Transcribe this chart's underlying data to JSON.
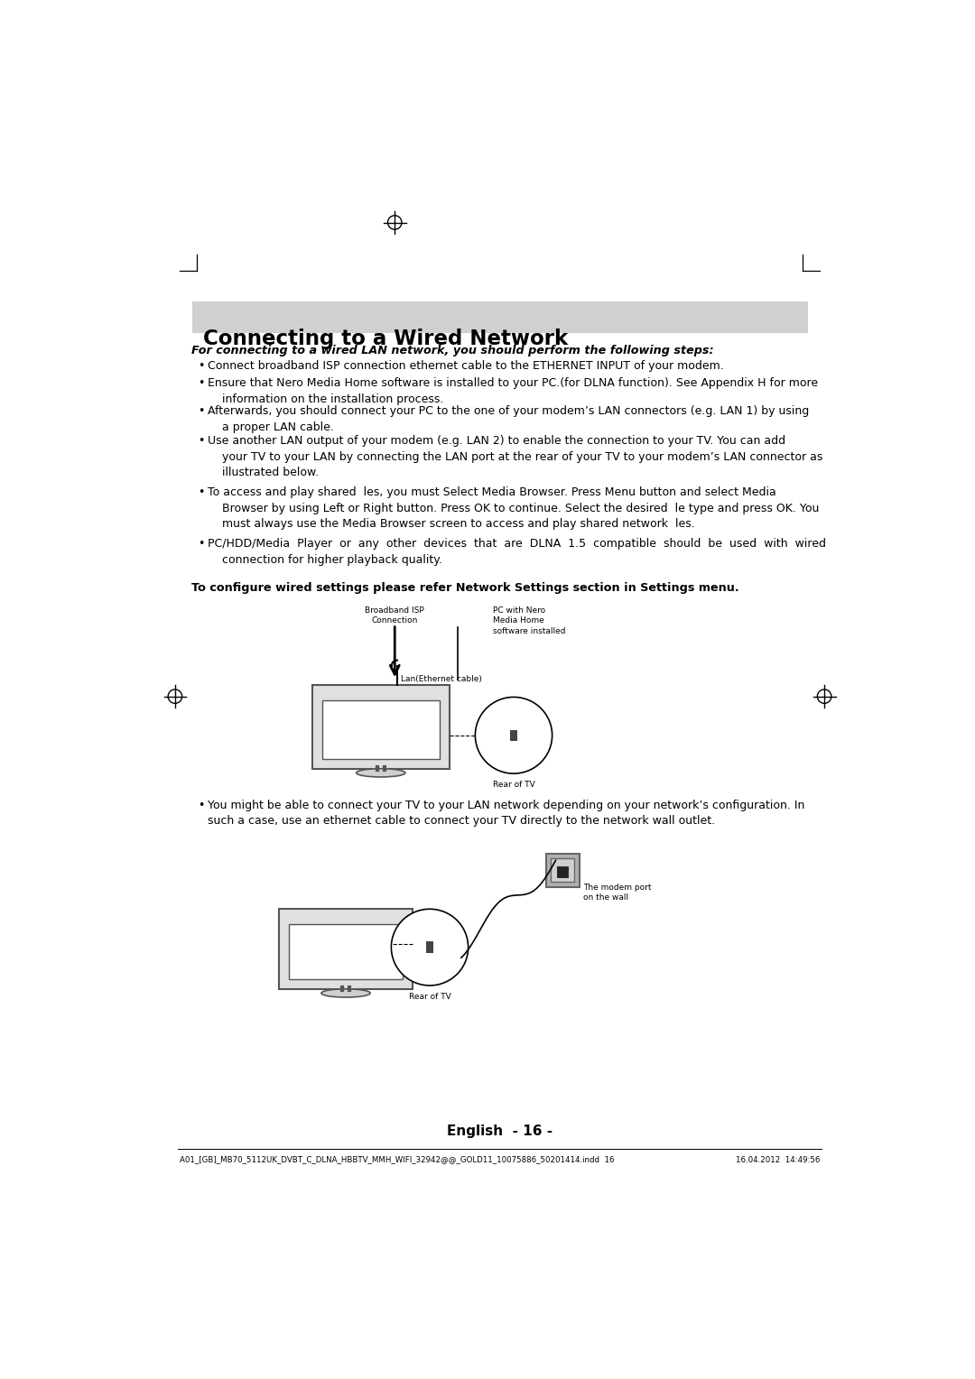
{
  "bg_color": "#ffffff",
  "title": "Connecting to a Wired Network",
  "title_bg": "#d0d0d0",
  "bold_italic_line": "For connecting to a wired LAN network, you should perform the following steps:",
  "bullets": [
    "Connect broadband ISP connection ethernet cable to the ETHERNET INPUT of your modem.",
    "Ensure that Nero Media Home software is installed to your PC.(for DLNA function). See Appendix H for more\n    information on the installation process.",
    "Afterwards, you should connect your PC to the one of your modem’s LAN connectors (e.g. LAN 1) by using\n    a proper LAN cable.",
    "Use another LAN output of your modem (e.g. LAN 2) to enable the connection to your TV. You can add\n    your TV to your LAN by connecting the LAN port at the rear of your TV to your modem’s LAN connector as\n    illustrated below.",
    "To access and play shared  les, you must Select Media Browser. Press Menu button and select Media\n    Browser by using Left or Right button. Press OK to continue. Select the desired  le type and press OK. You\n    must always use the Media Browser screen to access and play shared network  les.",
    "PC/HDD/Media  Player  or  any  other  devices  that  are  DLNA  1.5  compatible  should  be  used  with  wired\n    connection for higher playback quality."
  ],
  "bold_footer": "To conﬁgure wired settings please refer Network Settings section in Settings menu.",
  "bullet2_text1": "You might be able to connect your TV to your LAN network depending on your network’s conﬁguration. In",
  "bullet2_text2": "such a case, use an ethernet cable to connect your TV directly to the network wall outlet.",
  "footnote_left": "A01_[GB]_MB70_5112UK_DVBT_C_DLNA_HBBTV_MMH_WIFI_32942@@_GOLD11_10075886_50201414.indd  16",
  "footnote_right": "16.04.2012  14:49:56",
  "footnote_center": "English  - 16 -",
  "label_broadband": "Broadband ISP\nConnection",
  "label_pc": "PC with Nero\nMedia Home\nsoftware installed",
  "label_lan": "Lan(Ethernet cable)",
  "label_rear_tv": "Rear of TV",
  "label_modem_port": "The modem port\non the wall"
}
